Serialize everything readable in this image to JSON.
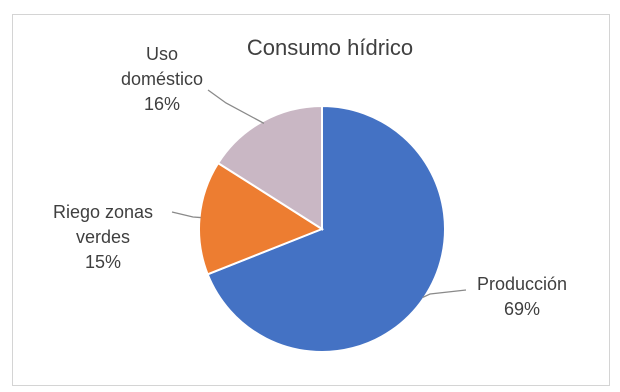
{
  "chart_data": {
    "type": "pie",
    "title": "Consumo hídrico",
    "slices": [
      {
        "label_lines": [
          "Producción"
        ],
        "value": 69,
        "value_label": "69%",
        "color": "#4472c4"
      },
      {
        "label_lines": [
          "Riego zonas",
          "verdes"
        ],
        "value": 15,
        "value_label": "15%",
        "color": "#ed7d31"
      },
      {
        "label_lines": [
          "Uso",
          "doméstico"
        ],
        "value": 16,
        "value_label": "16%",
        "color": "#c9b7c4"
      }
    ],
    "legend": "none",
    "data_labels": "outside-with-leader-lines"
  }
}
